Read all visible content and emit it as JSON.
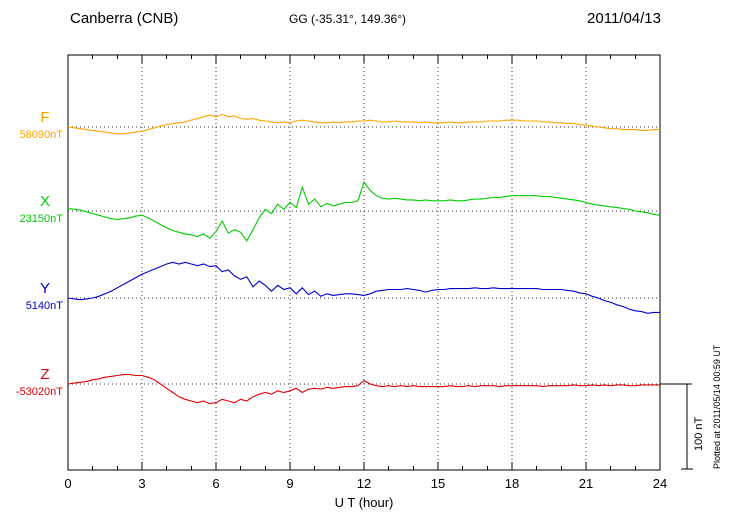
{
  "header": {
    "station": "Canberra (CNB)",
    "coordinates": "GG (-35.31°, 149.36°)",
    "date": "2011/04/13"
  },
  "chart_data": {
    "type": "line",
    "title": "Canberra (CNB)",
    "subtitle": "GG (-35.31°, 149.36°)",
    "date_label": "2011/04/13",
    "xlabel": "U T (hour)",
    "x_range": [
      0,
      24
    ],
    "x_ticks": [
      0,
      3,
      6,
      9,
      12,
      15,
      18,
      21,
      24
    ],
    "sample_step_hours": 0.25,
    "legend_position": "left-of-plot",
    "grid": "dotted vertical lines every 3 hours; dotted horizontal baseline per component",
    "scale_bar": {
      "label": "100 nT",
      "nT": 100
    },
    "footer_note": "Plotted at 2011/05/14 00:59 UT",
    "series": [
      {
        "name": "F",
        "baseline_label": "58090nT",
        "baseline_nT": 58090,
        "color": "#FFA500",
        "offsets_nT": [
          0,
          -1,
          -2,
          -3,
          -4,
          -5,
          -6,
          -7,
          -8,
          -8,
          -7,
          -6,
          -5,
          -3,
          -1,
          1,
          3,
          4,
          5,
          6,
          8,
          10,
          12,
          14,
          12,
          15,
          12,
          13,
          10,
          9,
          10,
          8,
          7,
          6,
          5,
          6,
          5,
          7,
          8,
          7,
          6,
          5,
          5,
          6,
          5,
          6,
          6,
          7,
          7,
          8,
          7,
          6,
          6,
          7,
          6,
          6,
          6,
          5,
          6,
          5,
          5,
          5,
          6,
          5,
          5,
          6,
          6,
          6,
          7,
          7,
          7,
          8,
          8,
          8,
          7,
          7,
          7,
          6,
          6,
          5,
          5,
          4,
          4,
          3,
          2,
          1,
          0,
          -1,
          -2,
          -2,
          -3,
          -3,
          -3,
          -4,
          -4,
          -3,
          -3
        ]
      },
      {
        "name": "X",
        "baseline_label": "23150nT",
        "baseline_nT": 23150,
        "color": "#00CC00",
        "offsets_nT": [
          3,
          2,
          1,
          -1,
          -3,
          -5,
          -7,
          -9,
          -10,
          -9,
          -8,
          -6,
          -5,
          -8,
          -12,
          -16,
          -20,
          -23,
          -25,
          -27,
          -28,
          -30,
          -27,
          -32,
          -24,
          -12,
          -26,
          -22,
          -25,
          -35,
          -22,
          -8,
          2,
          -3,
          8,
          2,
          10,
          4,
          28,
          8,
          14,
          5,
          9,
          6,
          8,
          10,
          10,
          12,
          34,
          24,
          18,
          15,
          14,
          15,
          14,
          13,
          13,
          12,
          13,
          12,
          12,
          12,
          13,
          12,
          12,
          13,
          14,
          14,
          15,
          16,
          16,
          17,
          18,
          18,
          18,
          18,
          18,
          17,
          17,
          16,
          15,
          14,
          13,
          12,
          10,
          8,
          7,
          6,
          5,
          4,
          3,
          2,
          0,
          -1,
          -2,
          -4,
          -5
        ]
      },
      {
        "name": "Y",
        "baseline_label": "5140nT",
        "baseline_nT": 5140,
        "color": "#0000CC",
        "offsets_nT": [
          0,
          -1,
          -2,
          -1,
          0,
          2,
          5,
          8,
          12,
          16,
          20,
          24,
          28,
          31,
          34,
          37,
          40,
          42,
          40,
          42,
          40,
          38,
          40,
          37,
          38,
          31,
          33,
          26,
          22,
          25,
          13,
          20,
          15,
          8,
          15,
          10,
          12,
          5,
          12,
          4,
          8,
          2,
          5,
          3,
          4,
          5,
          5,
          4,
          3,
          5,
          8,
          9,
          10,
          10,
          10,
          11,
          10,
          9,
          7,
          9,
          10,
          10,
          11,
          11,
          11,
          11,
          12,
          11,
          11,
          12,
          11,
          11,
          11,
          11,
          11,
          11,
          11,
          10,
          10,
          10,
          10,
          9,
          8,
          6,
          5,
          2,
          0,
          -3,
          -5,
          -8,
          -10,
          -13,
          -15,
          -16,
          -18,
          -17,
          -17
        ]
      },
      {
        "name": "Z",
        "baseline_label": "-53020nT",
        "baseline_nT": -53020,
        "color": "#DD0000",
        "offsets_nT": [
          0,
          1,
          2,
          3,
          5,
          6,
          8,
          9,
          10,
          11,
          11,
          10,
          10,
          8,
          5,
          0,
          -5,
          -10,
          -15,
          -18,
          -20,
          -22,
          -20,
          -23,
          -22,
          -18,
          -20,
          -22,
          -18,
          -20,
          -15,
          -12,
          -10,
          -12,
          -8,
          -10,
          -8,
          -5,
          -10,
          -6,
          -5,
          -6,
          -4,
          -5,
          -4,
          -3,
          -3,
          -2,
          4,
          0,
          -2,
          -3,
          -2,
          -3,
          -2,
          -3,
          -2,
          -3,
          -3,
          -3,
          -3,
          -3,
          -2,
          -3,
          -3,
          -2,
          -3,
          -2,
          -2,
          -2,
          -3,
          -2,
          -2,
          -2,
          -2,
          -2,
          -2,
          -3,
          -2,
          -2,
          -2,
          -2,
          -1,
          -2,
          -2,
          -1,
          -2,
          -1,
          -2,
          -1,
          -1,
          -2,
          -2,
          -1,
          -1,
          -1,
          -1
        ]
      }
    ]
  }
}
